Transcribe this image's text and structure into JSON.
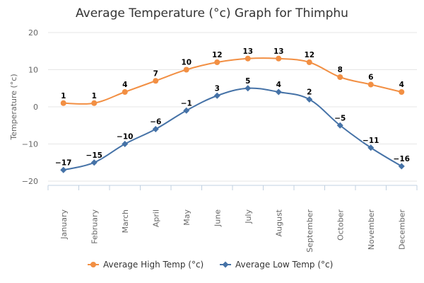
{
  "chart_data": {
    "type": "line",
    "title": "Average Temperature (°c) Graph for Thimphu",
    "ylabel": "Temperature (°c)",
    "xlabel": "",
    "ylim": [
      -20,
      20
    ],
    "yticks": [
      "20",
      "10",
      "0",
      "−10",
      "−20"
    ],
    "categories": [
      "January",
      "February",
      "March",
      "April",
      "May",
      "June",
      "July",
      "August",
      "September",
      "October",
      "November",
      "December"
    ],
    "grid": "horizontal",
    "legend_position": "bottom",
    "series": [
      {
        "name": "Average High Temp (°c)",
        "values": [
          1,
          1,
          4,
          7,
          10,
          12,
          13,
          13,
          12,
          8,
          6,
          4
        ],
        "labels": [
          "1",
          "1",
          "4",
          "7",
          "10",
          "12",
          "13",
          "13",
          "12",
          "8",
          "6",
          "4"
        ],
        "color": "#f28f43",
        "marker": "circle"
      },
      {
        "name": "Average Low Temp (°c)",
        "values": [
          -17,
          -15,
          -10,
          -6,
          -1,
          3,
          5,
          4,
          2,
          -5,
          -11,
          -16
        ],
        "labels": [
          "−17",
          "−15",
          "−10",
          "−6",
          "−1",
          "3",
          "5",
          "4",
          "2",
          "−5",
          "−11",
          "−16"
        ],
        "color": "#4572a7",
        "marker": "diamond"
      }
    ]
  }
}
